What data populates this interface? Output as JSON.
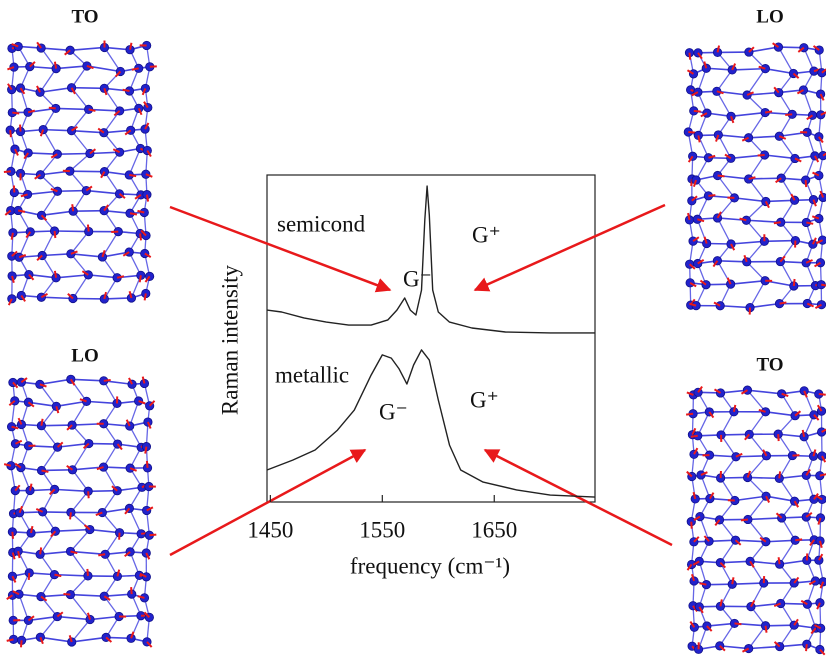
{
  "chart_data": {
    "type": "line",
    "xlabel": "frequency (cm⁻¹)",
    "ylabel": "Raman intensity",
    "xlim": [
      1447,
      1740
    ],
    "ylim": [
      0,
      100
    ],
    "xticks": [
      1450,
      1550,
      1650
    ],
    "series": [
      {
        "name": "semicond",
        "color": "#222222",
        "x": [
          1447,
          1460,
          1480,
          1500,
          1520,
          1540,
          1555,
          1563,
          1570,
          1575,
          1580,
          1585,
          1588,
          1590,
          1592,
          1595,
          1600,
          1610,
          1630,
          1660,
          1700,
          1740
        ],
        "values": [
          58.7,
          58.1,
          56.3,
          55.0,
          54.1,
          54.1,
          55.7,
          58.7,
          62.4,
          58.7,
          57.2,
          64.8,
          86.2,
          96.6,
          87.8,
          64.8,
          58.1,
          55.0,
          53.2,
          52.0,
          51.7,
          51.7
        ]
      },
      {
        "name": "metallic",
        "color": "#222222",
        "x": [
          1447,
          1470,
          1490,
          1510,
          1525,
          1540,
          1550,
          1558,
          1565,
          1572,
          1578,
          1585,
          1592,
          1600,
          1610,
          1620,
          1640,
          1670,
          1700,
          1740
        ],
        "values": [
          9.8,
          12.8,
          15.9,
          22.0,
          28.1,
          38.8,
          45.0,
          44.0,
          40.7,
          36.1,
          41.9,
          46.5,
          43.4,
          31.2,
          17.4,
          9.8,
          6.1,
          3.7,
          2.1,
          1.5
        ]
      }
    ],
    "annotations": [
      "G⁻",
      "G⁺",
      "G⁻",
      "G⁺"
    ]
  },
  "modes": [
    "TO",
    "LO",
    "LO",
    "TO"
  ]
}
